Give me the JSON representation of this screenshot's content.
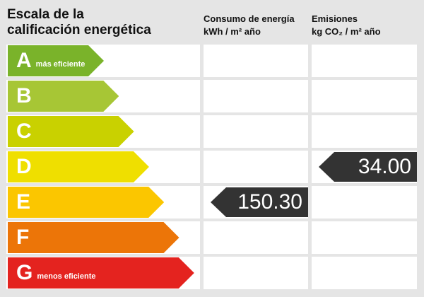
{
  "title": [
    "Escala de la",
    "calificación energética"
  ],
  "columns": [
    {
      "title": "Consumo de energía",
      "unit": "kWh / m² año",
      "rating": "E",
      "value": "150.30"
    },
    {
      "title": "Emisiones",
      "unit": "kg CO₂ / m² año",
      "rating": "D",
      "value": "34.00"
    }
  ],
  "ratings": [
    {
      "letter": "A",
      "note": "más eficiente",
      "color": "#7ab32a"
    },
    {
      "letter": "B",
      "letter_only": true,
      "color": "#a7c635"
    },
    {
      "letter": "C",
      "color": "#c9d100"
    },
    {
      "letter": "D",
      "color": "#efdf00"
    },
    {
      "letter": "E",
      "color": "#fbc600"
    },
    {
      "letter": "F",
      "color": "#ec7508"
    },
    {
      "letter": "G",
      "note": "menos eficiente",
      "color": "#e4231f"
    }
  ]
}
